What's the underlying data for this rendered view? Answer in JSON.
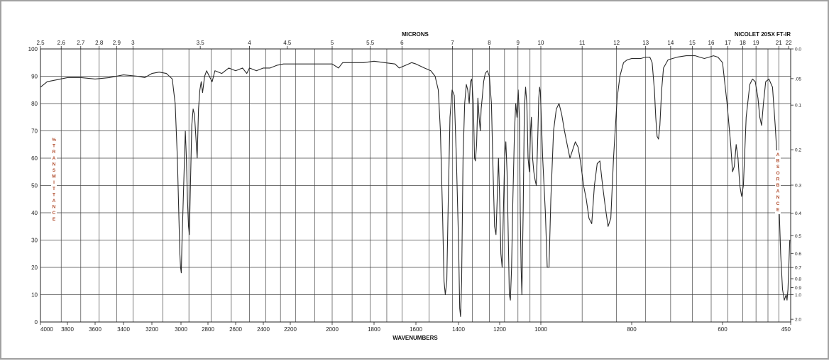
{
  "chart_data": {
    "type": "line",
    "instrument": "NICOLET 20SX FT-IR",
    "top_axis_label": "MICRONS",
    "xlabel": "WAVENUMBERS",
    "ylabel_left": "%TRANSMITTANCE",
    "ylabel_right": "ABSORBANCE",
    "xlim": [
      4000,
      450
    ],
    "ylim": [
      0,
      100
    ],
    "grid": true,
    "wavenumber_ticks": [
      "4000",
      "3800",
      "3600",
      "3400",
      "3200",
      "3000",
      "2800",
      "2600",
      "2400",
      "2200",
      "2000",
      "1800",
      "1600",
      "1400",
      "1200",
      "1000",
      "800",
      "600",
      "450"
    ],
    "micron_ticks": [
      "2.5",
      "2.6",
      "2.7",
      "2.8",
      "2.9",
      "3",
      "3.5",
      "4",
      "4.5",
      "5",
      "5.5",
      "6",
      "7",
      "8",
      "9",
      "10",
      "11",
      "12",
      "13",
      "14",
      "15",
      "16",
      "17",
      "18",
      "19",
      "21",
      "22"
    ],
    "transmittance_ticks": [
      "0",
      "10",
      "20",
      "30",
      "40",
      "50",
      "60",
      "70",
      "80",
      "90",
      "100"
    ],
    "absorbance_ticks": [
      "0.0",
      ".05",
      "0.1",
      "0.2",
      "0.3",
      "0.4",
      "0.5",
      "0.6",
      "0.7",
      "0.8",
      "0.9",
      "1.0",
      "2.0"
    ],
    "series": [
      {
        "values": [
          [
            4000,
            86
          ],
          [
            3950,
            88
          ],
          [
            3900,
            88.5
          ],
          [
            3800,
            89.5
          ],
          [
            3700,
            89.5
          ],
          [
            3600,
            89
          ],
          [
            3500,
            89.5
          ],
          [
            3400,
            90.5
          ],
          [
            3300,
            90
          ],
          [
            3250,
            89.5
          ],
          [
            3200,
            91
          ],
          [
            3150,
            91.5
          ],
          [
            3100,
            91
          ],
          [
            3060,
            89
          ],
          [
            3040,
            80
          ],
          [
            3025,
            60
          ],
          [
            3015,
            40
          ],
          [
            3008,
            25
          ],
          [
            3003,
            20
          ],
          [
            2998,
            18
          ],
          [
            2993,
            28
          ],
          [
            2980,
            50
          ],
          [
            2968,
            70
          ],
          [
            2960,
            60
          ],
          [
            2952,
            45
          ],
          [
            2944,
            35
          ],
          [
            2938,
            32
          ],
          [
            2930,
            50
          ],
          [
            2920,
            72
          ],
          [
            2910,
            78
          ],
          [
            2900,
            76
          ],
          [
            2890,
            68
          ],
          [
            2880,
            60
          ],
          [
            2870,
            78
          ],
          [
            2860,
            85
          ],
          [
            2850,
            88
          ],
          [
            2840,
            84
          ],
          [
            2825,
            90
          ],
          [
            2810,
            92
          ],
          [
            2790,
            90
          ],
          [
            2770,
            88
          ],
          [
            2750,
            92
          ],
          [
            2700,
            91
          ],
          [
            2650,
            93
          ],
          [
            2600,
            92
          ],
          [
            2550,
            93
          ],
          [
            2520,
            91
          ],
          [
            2500,
            93
          ],
          [
            2450,
            92
          ],
          [
            2400,
            93
          ],
          [
            2350,
            93
          ],
          [
            2300,
            94
          ],
          [
            2250,
            94.5
          ],
          [
            2200,
            94.5
          ],
          [
            2100,
            94.5
          ],
          [
            2000,
            94.5
          ],
          [
            1970,
            93
          ],
          [
            1950,
            95
          ],
          [
            1900,
            95
          ],
          [
            1850,
            95
          ],
          [
            1800,
            95.5
          ],
          [
            1750,
            95
          ],
          [
            1700,
            94.5
          ],
          [
            1680,
            93
          ],
          [
            1650,
            94
          ],
          [
            1620,
            95
          ],
          [
            1600,
            94.5
          ],
          [
            1560,
            93
          ],
          [
            1530,
            92
          ],
          [
            1510,
            90
          ],
          [
            1495,
            85
          ],
          [
            1485,
            70
          ],
          [
            1475,
            40
          ],
          [
            1468,
            15
          ],
          [
            1462,
            10
          ],
          [
            1455,
            15
          ],
          [
            1448,
            45
          ],
          [
            1440,
            75
          ],
          [
            1430,
            85
          ],
          [
            1420,
            83
          ],
          [
            1410,
            60
          ],
          [
            1400,
            30
          ],
          [
            1394,
            5
          ],
          [
            1390,
            2
          ],
          [
            1385,
            15
          ],
          [
            1378,
            60
          ],
          [
            1370,
            80
          ],
          [
            1362,
            87
          ],
          [
            1355,
            85
          ],
          [
            1348,
            80
          ],
          [
            1342,
            88
          ],
          [
            1336,
            89
          ],
          [
            1328,
            80
          ],
          [
            1322,
            60
          ],
          [
            1318,
            59
          ],
          [
            1312,
            65
          ],
          [
            1306,
            82
          ],
          [
            1300,
            75
          ],
          [
            1294,
            70
          ],
          [
            1290,
            78
          ],
          [
            1285,
            82
          ],
          [
            1278,
            88
          ],
          [
            1270,
            91
          ],
          [
            1260,
            92
          ],
          [
            1250,
            90
          ],
          [
            1240,
            80
          ],
          [
            1232,
            55
          ],
          [
            1225,
            35
          ],
          [
            1218,
            32
          ],
          [
            1212,
            45
          ],
          [
            1206,
            60
          ],
          [
            1200,
            45
          ],
          [
            1194,
            25
          ],
          [
            1188,
            20
          ],
          [
            1182,
            40
          ],
          [
            1176,
            60
          ],
          [
            1170,
            66
          ],
          [
            1164,
            55
          ],
          [
            1158,
            30
          ],
          [
            1153,
            10
          ],
          [
            1148,
            8
          ],
          [
            1142,
            20
          ],
          [
            1136,
            45
          ],
          [
            1128,
            70
          ],
          [
            1122,
            80
          ],
          [
            1116,
            75
          ],
          [
            1110,
            85
          ],
          [
            1104,
            75
          ],
          [
            1100,
            40
          ],
          [
            1096,
            20
          ],
          [
            1092,
            10
          ],
          [
            1086,
            40
          ],
          [
            1080,
            78
          ],
          [
            1074,
            86
          ],
          [
            1068,
            80
          ],
          [
            1062,
            60
          ],
          [
            1056,
            55
          ],
          [
            1050,
            70
          ],
          [
            1046,
            75
          ],
          [
            1040,
            60
          ],
          [
            1034,
            55
          ],
          [
            1028,
            52
          ],
          [
            1022,
            50
          ],
          [
            1016,
            65
          ],
          [
            1010,
            82
          ],
          [
            1006,
            86
          ],
          [
            1002,
            84
          ],
          [
            996,
            60
          ],
          [
            990,
            40
          ],
          [
            986,
            20
          ],
          [
            982,
            20
          ],
          [
            978,
            45
          ],
          [
            972,
            70
          ],
          [
            966,
            78
          ],
          [
            960,
            80
          ],
          [
            954,
            76
          ],
          [
            948,
            70
          ],
          [
            942,
            65
          ],
          [
            936,
            60
          ],
          [
            930,
            63
          ],
          [
            924,
            66
          ],
          [
            918,
            64
          ],
          [
            912,
            58
          ],
          [
            906,
            50
          ],
          [
            900,
            45
          ],
          [
            894,
            38
          ],
          [
            888,
            36
          ],
          [
            882,
            50
          ],
          [
            876,
            58
          ],
          [
            870,
            59
          ],
          [
            864,
            50
          ],
          [
            858,
            42
          ],
          [
            852,
            35
          ],
          [
            846,
            38
          ],
          [
            840,
            60
          ],
          [
            832,
            82
          ],
          [
            826,
            90
          ],
          [
            818,
            95
          ],
          [
            810,
            96
          ],
          [
            800,
            96.5
          ],
          [
            790,
            96.5
          ],
          [
            780,
            96.5
          ],
          [
            770,
            97
          ],
          [
            760,
            97
          ],
          [
            755,
            95
          ],
          [
            750,
            85
          ],
          [
            747,
            75
          ],
          [
            744,
            68
          ],
          [
            741,
            67
          ],
          [
            738,
            72
          ],
          [
            734,
            85
          ],
          [
            730,
            93
          ],
          [
            720,
            96
          ],
          [
            700,
            97
          ],
          [
            680,
            97.5
          ],
          [
            660,
            97.5
          ],
          [
            650,
            97
          ],
          [
            640,
            96.5
          ],
          [
            630,
            97
          ],
          [
            620,
            97.5
          ],
          [
            610,
            97
          ],
          [
            600,
            95
          ],
          [
            590,
            80
          ],
          [
            582,
            65
          ],
          [
            578,
            55
          ],
          [
            574,
            57
          ],
          [
            570,
            65
          ],
          [
            566,
            60
          ],
          [
            562,
            50
          ],
          [
            558,
            46
          ],
          [
            554,
            50
          ],
          [
            548,
            75
          ],
          [
            540,
            87
          ],
          [
            534,
            89
          ],
          [
            528,
            88
          ],
          [
            522,
            82
          ],
          [
            518,
            75
          ],
          [
            514,
            72
          ],
          [
            510,
            80
          ],
          [
            505,
            88
          ],
          [
            498,
            89
          ],
          [
            490,
            86
          ],
          [
            484,
            72
          ],
          [
            478,
            55
          ],
          [
            472,
            25
          ],
          [
            468,
            12
          ],
          [
            464,
            8
          ],
          [
            460,
            10
          ],
          [
            458,
            8
          ],
          [
            456,
            12
          ],
          [
            452,
            30
          ]
        ]
      }
    ]
  }
}
